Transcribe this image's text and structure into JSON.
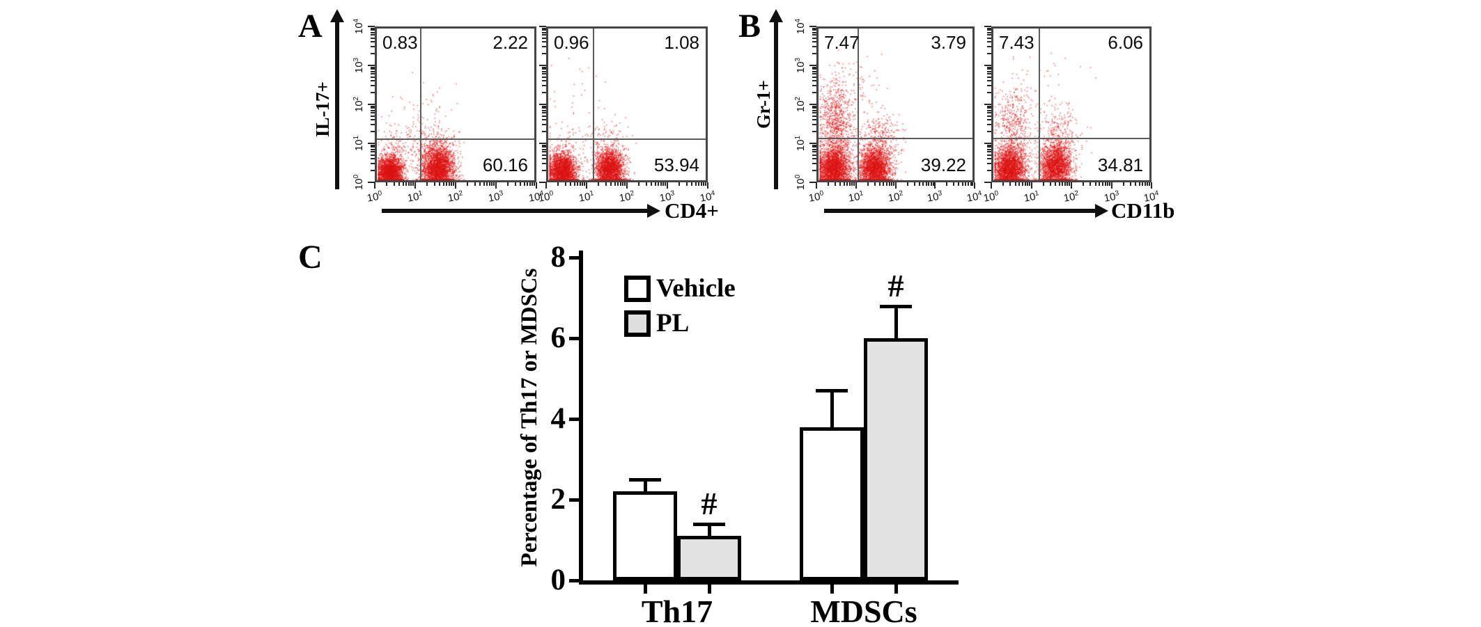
{
  "figure_bg": "#ffffff",
  "dot_color": "#df1414",
  "panels": {
    "a": {
      "letter": "A",
      "y_axis_label": "IL-17+",
      "x_axis_label": "CD4+",
      "plots": [
        {
          "id": "a-vehicle",
          "quadrants": {
            "ul": "0.83",
            "ur": "2.22",
            "lr": "60.16"
          }
        },
        {
          "id": "a-pl",
          "quadrants": {
            "ul": "0.96",
            "ur": "1.08",
            "lr": "53.94"
          }
        }
      ]
    },
    "b": {
      "letter": "B",
      "y_axis_label": "Gr-1+",
      "x_axis_label": "CD11b",
      "plots": [
        {
          "id": "b-vehicle",
          "quadrants": {
            "ul": "7.47",
            "ur": "3.79",
            "lr": "39.22"
          }
        },
        {
          "id": "b-pl",
          "quadrants": {
            "ul": "7.43",
            "ur": "6.06",
            "lr": "34.81"
          }
        }
      ]
    },
    "c": {
      "letter": "C",
      "ylabel": "Percentage of Th17 or MDSCs",
      "legend": [
        {
          "label": "Vehicle",
          "fill": "#ffffff"
        },
        {
          "label": "PL",
          "fill": "#dedede"
        }
      ],
      "sig_marker": "#"
    }
  },
  "chart_data": [
    {
      "type": "scatter",
      "panel": "A",
      "condition": "Vehicle",
      "xlabel": "CD4+",
      "ylabel": "IL-17+",
      "x_scale": "log10",
      "y_scale": "log10",
      "x_range": [
        1,
        10000
      ],
      "y_range": [
        1,
        10000
      ],
      "tick_exponents": [
        0,
        1,
        2,
        3,
        4
      ],
      "gate_x_decade": 1.12,
      "gate_y_decade": 1.08,
      "quadrant_percent": {
        "upper_left": 0.83,
        "upper_right": 2.22,
        "lower_right": 60.16
      },
      "populations": [
        {
          "n": 2600,
          "cx": 0.32,
          "cy": 0.22,
          "sx": 0.16,
          "sy": 0.22
        },
        {
          "n": 3000,
          "cx": 1.55,
          "cy": 0.3,
          "sx": 0.2,
          "sy": 0.3
        },
        {
          "n": 260,
          "cx": 1.45,
          "cy": 0.95,
          "sx": 0.33,
          "sy": 0.35
        },
        {
          "n": 130,
          "cx": 0.5,
          "cy": 0.95,
          "sx": 0.28,
          "sy": 0.32
        },
        {
          "n": 40,
          "cx": 1.2,
          "cy": 1.9,
          "sx": 0.5,
          "sy": 0.42
        }
      ]
    },
    {
      "type": "scatter",
      "panel": "A",
      "condition": "PL",
      "xlabel": "CD4+",
      "ylabel": "IL-17+",
      "x_scale": "log10",
      "y_scale": "log10",
      "x_range": [
        1,
        10000
      ],
      "y_range": [
        1,
        10000
      ],
      "tick_exponents": [
        0,
        1,
        2,
        3,
        4
      ],
      "gate_x_decade": 1.15,
      "gate_y_decade": 1.08,
      "quadrant_percent": {
        "upper_left": 0.96,
        "upper_right": 1.08,
        "lower_right": 53.94
      },
      "populations": [
        {
          "n": 2600,
          "cx": 0.35,
          "cy": 0.25,
          "sx": 0.18,
          "sy": 0.24
        },
        {
          "n": 2500,
          "cx": 1.55,
          "cy": 0.28,
          "sx": 0.18,
          "sy": 0.27
        },
        {
          "n": 160,
          "cx": 1.5,
          "cy": 0.9,
          "sx": 0.3,
          "sy": 0.32
        },
        {
          "n": 90,
          "cx": 0.5,
          "cy": 0.95,
          "sx": 0.28,
          "sy": 0.35
        },
        {
          "n": 25,
          "cx": 1.0,
          "cy": 2.3,
          "sx": 0.6,
          "sy": 0.5
        }
      ]
    },
    {
      "type": "scatter",
      "panel": "B",
      "condition": "Vehicle",
      "xlabel": "CD11b",
      "ylabel": "Gr-1+",
      "x_scale": "log10",
      "y_scale": "log10",
      "x_range": [
        1,
        10000
      ],
      "y_range": [
        1,
        10000
      ],
      "tick_exponents": [
        0,
        1,
        2,
        3,
        4
      ],
      "gate_x_decade": 1.03,
      "gate_y_decade": 1.1,
      "quadrant_percent": {
        "upper_left": 7.47,
        "upper_right": 3.79,
        "lower_right": 39.22
      },
      "populations": [
        {
          "n": 2700,
          "cx": 0.38,
          "cy": 0.3,
          "sx": 0.2,
          "sy": 0.28
        },
        {
          "n": 950,
          "cx": 0.45,
          "cy": 1.45,
          "sx": 0.22,
          "sy": 0.62
        },
        {
          "n": 2500,
          "cx": 1.45,
          "cy": 0.3,
          "sx": 0.2,
          "sy": 0.28
        },
        {
          "n": 430,
          "cx": 1.5,
          "cy": 1.0,
          "sx": 0.3,
          "sy": 0.4
        },
        {
          "n": 70,
          "cx": 1.0,
          "cy": 2.55,
          "sx": 0.42,
          "sy": 0.45
        }
      ]
    },
    {
      "type": "scatter",
      "panel": "B",
      "condition": "PL",
      "xlabel": "CD11b",
      "ylabel": "Gr-1+",
      "x_scale": "log10",
      "y_scale": "log10",
      "x_range": [
        1,
        10000
      ],
      "y_range": [
        1,
        10000
      ],
      "tick_exponents": [
        0,
        1,
        2,
        3,
        4
      ],
      "gate_x_decade": 1.17,
      "gate_y_decade": 1.1,
      "quadrant_percent": {
        "upper_left": 7.43,
        "upper_right": 6.06,
        "lower_right": 34.81
      },
      "populations": [
        {
          "n": 2600,
          "cx": 0.4,
          "cy": 0.3,
          "sx": 0.2,
          "sy": 0.28
        },
        {
          "n": 560,
          "cx": 0.5,
          "cy": 1.4,
          "sx": 0.25,
          "sy": 0.58
        },
        {
          "n": 2200,
          "cx": 1.58,
          "cy": 0.35,
          "sx": 0.2,
          "sy": 0.3
        },
        {
          "n": 420,
          "cx": 1.62,
          "cy": 1.05,
          "sx": 0.28,
          "sy": 0.45
        },
        {
          "n": 30,
          "cx": 1.3,
          "cy": 2.6,
          "sx": 0.5,
          "sy": 0.4
        }
      ]
    },
    {
      "type": "bar",
      "title": "",
      "categories": [
        "Th17",
        "MDSCs"
      ],
      "series": [
        {
          "name": "Vehicle",
          "values": [
            2.2,
            3.8
          ],
          "errors": [
            0.3,
            0.9
          ],
          "fill": "#ffffff"
        },
        {
          "name": "PL",
          "values": [
            1.1,
            6.0
          ],
          "errors": [
            0.3,
            0.8
          ],
          "fill": "#e2e2e2"
        }
      ],
      "ylabel": "Percentage of Th17 or MDSCs",
      "xlabel": "",
      "ylim": [
        0,
        8
      ],
      "yticks": [
        0,
        2,
        4,
        6,
        8
      ],
      "grid": false,
      "legend_position": "upper-left",
      "significance": [
        {
          "series": "PL",
          "category": "Th17",
          "marker": "#"
        },
        {
          "series": "PL",
          "category": "MDSCs",
          "marker": "#"
        }
      ]
    }
  ]
}
